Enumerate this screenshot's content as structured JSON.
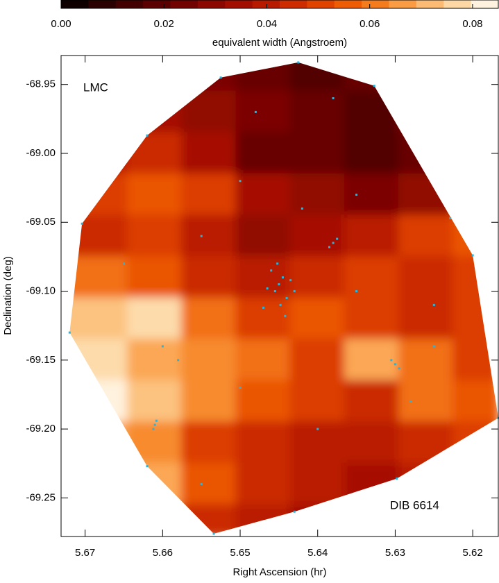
{
  "chart_data": {
    "type": "heatmap",
    "colorbar_label": "equivalent width (Angstroem)",
    "colorbar_lim": [
      0,
      0.085
    ],
    "colorbar_ticks": [
      {
        "value": 0,
        "label": "0.00"
      },
      {
        "value": 0.02,
        "label": "0.02"
      },
      {
        "value": 0.04,
        "label": "0.04"
      },
      {
        "value": 0.06,
        "label": "0.06"
      },
      {
        "value": 0.08,
        "label": "0.08"
      }
    ],
    "colorscale": [
      "#0e0000",
      "#2a0000",
      "#420000",
      "#5a0000",
      "#720200",
      "#8a0800",
      "#a20e00",
      "#b81a00",
      "#cc2c00",
      "#e04200",
      "#ee5c04",
      "#f57c1c",
      "#fa9c44",
      "#fcbb74",
      "#fdd8a4",
      "#fff2de"
    ],
    "xlabel": "Right Ascension (hr)",
    "ylabel": "Declination (deg)",
    "annotations": [
      "LMC",
      "DIB 6614"
    ],
    "xlim": [
      5.6731,
      5.6167
    ],
    "ylim": [
      -69.278,
      -68.929
    ],
    "xticks": [
      5.67,
      5.66,
      5.65,
      5.64,
      5.63,
      5.62
    ],
    "yticks": [
      {
        "value": -68.95,
        "label": "-68.95"
      },
      {
        "value": -69.0,
        "label": "-69.00"
      },
      {
        "value": -69.05,
        "label": "-69.05"
      },
      {
        "value": -69.1,
        "label": "-69.10"
      },
      {
        "value": -69.15,
        "label": "-69.15"
      },
      {
        "value": -69.2,
        "label": "-69.20"
      },
      {
        "value": -69.25,
        "label": "-69.25"
      }
    ],
    "x": [
      5.668,
      5.661,
      5.654,
      5.647,
      5.64,
      5.633,
      5.626,
      5.619
    ],
    "y": [
      -68.94,
      -68.97,
      -69.0,
      -69.03,
      -69.06,
      -69.09,
      -69.12,
      -69.15,
      -69.18,
      -69.21,
      -69.24,
      -69.27
    ],
    "z": [
      [
        0.03,
        0.03,
        0.025,
        0.02,
        0.015,
        0.02,
        0.03,
        0.03
      ],
      [
        0.035,
        0.035,
        0.03,
        0.025,
        0.02,
        0.015,
        0.025,
        0.03
      ],
      [
        0.04,
        0.045,
        0.035,
        0.02,
        0.02,
        0.015,
        0.02,
        0.03
      ],
      [
        0.05,
        0.055,
        0.05,
        0.035,
        0.03,
        0.025,
        0.03,
        0.04
      ],
      [
        0.045,
        0.05,
        0.04,
        0.03,
        0.035,
        0.04,
        0.05,
        0.055
      ],
      [
        0.06,
        0.055,
        0.045,
        0.04,
        0.045,
        0.05,
        0.045,
        0.05
      ],
      [
        0.075,
        0.08,
        0.06,
        0.05,
        0.055,
        0.05,
        0.045,
        0.05
      ],
      [
        0.08,
        0.07,
        0.065,
        0.06,
        0.05,
        0.07,
        0.06,
        0.05
      ],
      [
        0.085,
        0.075,
        0.065,
        0.055,
        0.05,
        0.045,
        0.06,
        0.055
      ],
      [
        0.07,
        0.065,
        0.05,
        0.045,
        0.04,
        0.04,
        0.045,
        0.05
      ],
      [
        0.08,
        0.07,
        0.055,
        0.045,
        0.04,
        0.035,
        0.04,
        0.045
      ],
      [
        0.06,
        0.06,
        0.045,
        0.04,
        0.035,
        0.03,
        0.035,
        0.04
      ]
    ],
    "points": {
      "color": "#2ab4dc",
      "x": [
        5.6525,
        5.6425,
        5.6327,
        5.6229,
        5.62,
        5.6167,
        5.6298,
        5.6534,
        5.662,
        5.672,
        5.6704,
        5.662,
        5.645,
        5.6455,
        5.6445,
        5.646,
        5.644,
        5.6448,
        5.6465,
        5.6435,
        5.6452,
        5.6442,
        5.647,
        5.643,
        5.638,
        5.6385,
        5.6375,
        5.63,
        5.6305,
        5.6295,
        5.661,
        5.6612,
        5.6608,
        5.65,
        5.642,
        5.635,
        5.655,
        5.66,
        5.625,
        5.628,
        5.64,
        5.65,
        5.655,
        5.643,
        5.635,
        5.625,
        5.665,
        5.648,
        5.638,
        5.658
      ],
      "y": [
        -68.945,
        -68.934,
        -68.951,
        -69.047,
        -69.074,
        -69.192,
        -69.236,
        -69.276,
        -69.227,
        -69.13,
        -69.051,
        -68.987,
        -69.095,
        -69.1,
        -69.09,
        -69.085,
        -69.105,
        -69.11,
        -69.098,
        -69.092,
        -69.08,
        -69.118,
        -69.112,
        -69.1,
        -69.065,
        -69.068,
        -69.062,
        -69.153,
        -69.15,
        -69.156,
        -69.197,
        -69.2,
        -69.194,
        -69.02,
        -69.04,
        -69.03,
        -69.06,
        -69.14,
        -69.11,
        -69.18,
        -69.2,
        -69.17,
        -69.24,
        -69.26,
        -69.1,
        -69.14,
        -69.08,
        -68.97,
        -68.96,
        -69.15
      ]
    }
  }
}
